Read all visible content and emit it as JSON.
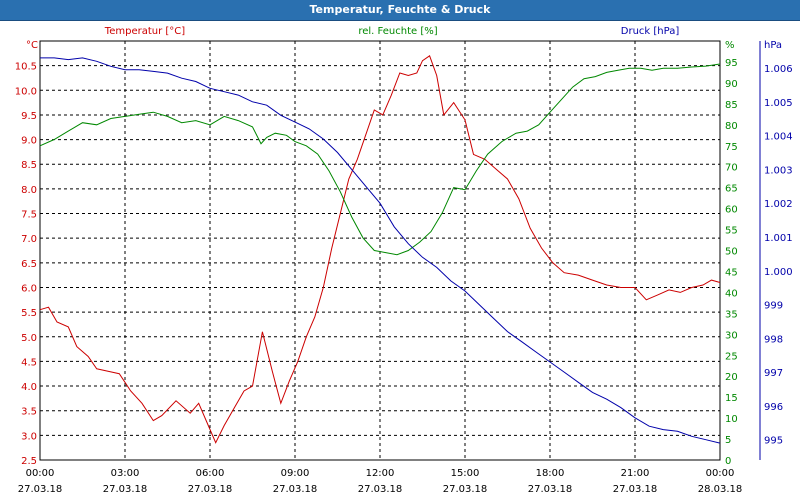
{
  "window": {
    "title": "Temperatur, Feuchte & Druck"
  },
  "colors": {
    "temperature": "#cc0000",
    "humidity": "#008800",
    "pressure": "#0000aa",
    "titlebar": "#2a70b0",
    "grid": "#000000"
  },
  "chart_data": {
    "type": "line",
    "title": "Temperatur, Feuchte & Druck",
    "grid": true,
    "x": {
      "ticks": [
        "00:00",
        "03:00",
        "06:00",
        "09:00",
        "12:00",
        "15:00",
        "18:00",
        "21:00",
        "00:00"
      ],
      "dates": [
        "27.03.18",
        "27.03.18",
        "27.03.18",
        "27.03.18",
        "27.03.18",
        "27.03.18",
        "27.03.18",
        "27.03.18",
        "28.03.18"
      ],
      "range": [
        "27.03.18 00:00",
        "28.03.18 00:00"
      ]
    },
    "axes": {
      "temperature": {
        "label": "Temperatur [°C]",
        "unit": "°C",
        "min": 2.5,
        "max": 11.0,
        "ticks": [
          "10.5",
          "10.0",
          "9.5",
          "9.0",
          "8.5",
          "8.0",
          "7.5",
          "7.0",
          "6.5",
          "6.0",
          "5.5",
          "5.0",
          "4.5",
          "4.0",
          "3.5",
          "3.0",
          "2.5"
        ]
      },
      "humidity": {
        "label": "rel. Feuchte [%]",
        "unit": "%",
        "min": 0,
        "max": 100,
        "ticks": [
          "95",
          "90",
          "85",
          "80",
          "75",
          "70",
          "65",
          "60",
          "55",
          "50",
          "45",
          "40",
          "35",
          "30",
          "25",
          "20",
          "15",
          "10",
          "5",
          "0"
        ]
      },
      "pressure": {
        "label": "Druck [hPa]",
        "unit": "hPa",
        "min": 994.4,
        "max": 1006.8,
        "ticks": [
          "1.006",
          "1.005",
          "1.004",
          "1.003",
          "1.002",
          "1.001",
          "1.000",
          "999",
          "998",
          "997",
          "996",
          "995"
        ]
      }
    },
    "series": [
      {
        "name": "Temperatur [°C]",
        "axis": "temperature",
        "points": [
          [
            0.0,
            5.55
          ],
          [
            0.3,
            5.6
          ],
          [
            0.6,
            5.3
          ],
          [
            1.0,
            5.2
          ],
          [
            1.3,
            4.8
          ],
          [
            1.7,
            4.6
          ],
          [
            2.0,
            4.35
          ],
          [
            2.4,
            4.3
          ],
          [
            2.8,
            4.25
          ],
          [
            3.2,
            3.9
          ],
          [
            3.6,
            3.65
          ],
          [
            4.0,
            3.3
          ],
          [
            4.3,
            3.4
          ],
          [
            4.8,
            3.7
          ],
          [
            5.3,
            3.45
          ],
          [
            5.6,
            3.65
          ],
          [
            5.9,
            3.25
          ],
          [
            6.2,
            2.85
          ],
          [
            6.5,
            3.2
          ],
          [
            6.9,
            3.6
          ],
          [
            7.2,
            3.9
          ],
          [
            7.5,
            4.0
          ],
          [
            7.85,
            5.1
          ],
          [
            8.2,
            4.3
          ],
          [
            8.5,
            3.65
          ],
          [
            8.8,
            4.1
          ],
          [
            9.1,
            4.5
          ],
          [
            9.4,
            5.0
          ],
          [
            9.7,
            5.4
          ],
          [
            10.0,
            6.0
          ],
          [
            10.3,
            6.8
          ],
          [
            10.6,
            7.5
          ],
          [
            10.9,
            8.2
          ],
          [
            11.2,
            8.6
          ],
          [
            11.5,
            9.1
          ],
          [
            11.8,
            9.6
          ],
          [
            12.1,
            9.5
          ],
          [
            12.4,
            9.9
          ],
          [
            12.7,
            10.35
          ],
          [
            13.0,
            10.3
          ],
          [
            13.3,
            10.35
          ],
          [
            13.5,
            10.6
          ],
          [
            13.75,
            10.7
          ],
          [
            14.0,
            10.3
          ],
          [
            14.25,
            9.5
          ],
          [
            14.6,
            9.75
          ],
          [
            15.0,
            9.4
          ],
          [
            15.3,
            8.7
          ],
          [
            15.7,
            8.6
          ],
          [
            16.1,
            8.4
          ],
          [
            16.5,
            8.2
          ],
          [
            16.9,
            7.8
          ],
          [
            17.3,
            7.2
          ],
          [
            17.7,
            6.8
          ],
          [
            18.1,
            6.5
          ],
          [
            18.5,
            6.3
          ],
          [
            19.0,
            6.25
          ],
          [
            19.5,
            6.15
          ],
          [
            20.0,
            6.05
          ],
          [
            20.5,
            6.0
          ],
          [
            21.0,
            6.0
          ],
          [
            21.4,
            5.75
          ],
          [
            21.8,
            5.85
          ],
          [
            22.2,
            5.95
          ],
          [
            22.6,
            5.9
          ],
          [
            23.0,
            6.0
          ],
          [
            23.4,
            6.05
          ],
          [
            23.7,
            6.15
          ],
          [
            24.0,
            6.1
          ]
        ]
      },
      {
        "name": "rel. Feuchte [%]",
        "axis": "humidity",
        "points": [
          [
            0.0,
            75.0
          ],
          [
            0.5,
            76.5
          ],
          [
            1.0,
            78.5
          ],
          [
            1.5,
            80.5
          ],
          [
            2.0,
            80.0
          ],
          [
            2.5,
            81.5
          ],
          [
            3.0,
            82.0
          ],
          [
            3.5,
            82.5
          ],
          [
            4.0,
            83.0
          ],
          [
            4.5,
            82.0
          ],
          [
            5.0,
            80.5
          ],
          [
            5.5,
            81.0
          ],
          [
            6.0,
            80.0
          ],
          [
            6.5,
            82.0
          ],
          [
            7.0,
            81.0
          ],
          [
            7.5,
            79.5
          ],
          [
            7.8,
            75.5
          ],
          [
            8.0,
            77.0
          ],
          [
            8.3,
            78.0
          ],
          [
            8.7,
            77.5
          ],
          [
            9.0,
            76.0
          ],
          [
            9.4,
            75.0
          ],
          [
            9.8,
            73.0
          ],
          [
            10.2,
            69.0
          ],
          [
            10.6,
            64.0
          ],
          [
            11.0,
            58.0
          ],
          [
            11.4,
            53.0
          ],
          [
            11.8,
            50.0
          ],
          [
            12.2,
            49.5
          ],
          [
            12.6,
            49.0
          ],
          [
            13.0,
            50.0
          ],
          [
            13.4,
            52.0
          ],
          [
            13.8,
            54.5
          ],
          [
            14.2,
            59.0
          ],
          [
            14.6,
            65.0
          ],
          [
            15.0,
            64.5
          ],
          [
            15.4,
            69.0
          ],
          [
            15.8,
            73.0
          ],
          [
            16.3,
            76.0
          ],
          [
            16.8,
            78.0
          ],
          [
            17.2,
            78.5
          ],
          [
            17.6,
            80.0
          ],
          [
            18.0,
            83.0
          ],
          [
            18.4,
            86.0
          ],
          [
            18.8,
            89.0
          ],
          [
            19.2,
            91.0
          ],
          [
            19.6,
            91.5
          ],
          [
            20.0,
            92.5
          ],
          [
            20.4,
            93.0
          ],
          [
            20.8,
            93.5
          ],
          [
            21.2,
            93.5
          ],
          [
            21.6,
            93.0
          ],
          [
            22.0,
            93.5
          ],
          [
            22.5,
            93.5
          ],
          [
            23.0,
            93.8
          ],
          [
            23.5,
            94.0
          ],
          [
            24.0,
            94.5
          ]
        ]
      },
      {
        "name": "Druck [hPa]",
        "axis": "pressure",
        "points": [
          [
            0.0,
            1006.3
          ],
          [
            0.5,
            1006.3
          ],
          [
            1.0,
            1006.25
          ],
          [
            1.5,
            1006.3
          ],
          [
            2.0,
            1006.2
          ],
          [
            2.5,
            1006.05
          ],
          [
            3.0,
            1005.95
          ],
          [
            3.5,
            1005.95
          ],
          [
            4.0,
            1005.9
          ],
          [
            4.5,
            1005.85
          ],
          [
            5.0,
            1005.7
          ],
          [
            5.5,
            1005.6
          ],
          [
            6.0,
            1005.4
          ],
          [
            6.5,
            1005.3
          ],
          [
            7.0,
            1005.2
          ],
          [
            7.5,
            1005.0
          ],
          [
            8.0,
            1004.9
          ],
          [
            8.5,
            1004.6
          ],
          [
            9.0,
            1004.4
          ],
          [
            9.5,
            1004.2
          ],
          [
            10.0,
            1003.9
          ],
          [
            10.5,
            1003.5
          ],
          [
            11.0,
            1003.0
          ],
          [
            11.5,
            1002.5
          ],
          [
            12.0,
            1002.0
          ],
          [
            12.5,
            1001.3
          ],
          [
            13.0,
            1000.8
          ],
          [
            13.5,
            1000.4
          ],
          [
            14.0,
            1000.1
          ],
          [
            14.5,
            999.7
          ],
          [
            15.0,
            999.4
          ],
          [
            15.5,
            999.0
          ],
          [
            16.0,
            998.6
          ],
          [
            16.5,
            998.2
          ],
          [
            17.0,
            997.9
          ],
          [
            17.5,
            997.6
          ],
          [
            18.0,
            997.3
          ],
          [
            18.5,
            997.0
          ],
          [
            19.0,
            996.7
          ],
          [
            19.5,
            996.4
          ],
          [
            20.0,
            996.2
          ],
          [
            20.5,
            995.95
          ],
          [
            21.0,
            995.65
          ],
          [
            21.5,
            995.4
          ],
          [
            22.0,
            995.3
          ],
          [
            22.5,
            995.25
          ],
          [
            23.0,
            995.1
          ],
          [
            23.5,
            995.0
          ],
          [
            24.0,
            994.9
          ]
        ]
      }
    ]
  }
}
